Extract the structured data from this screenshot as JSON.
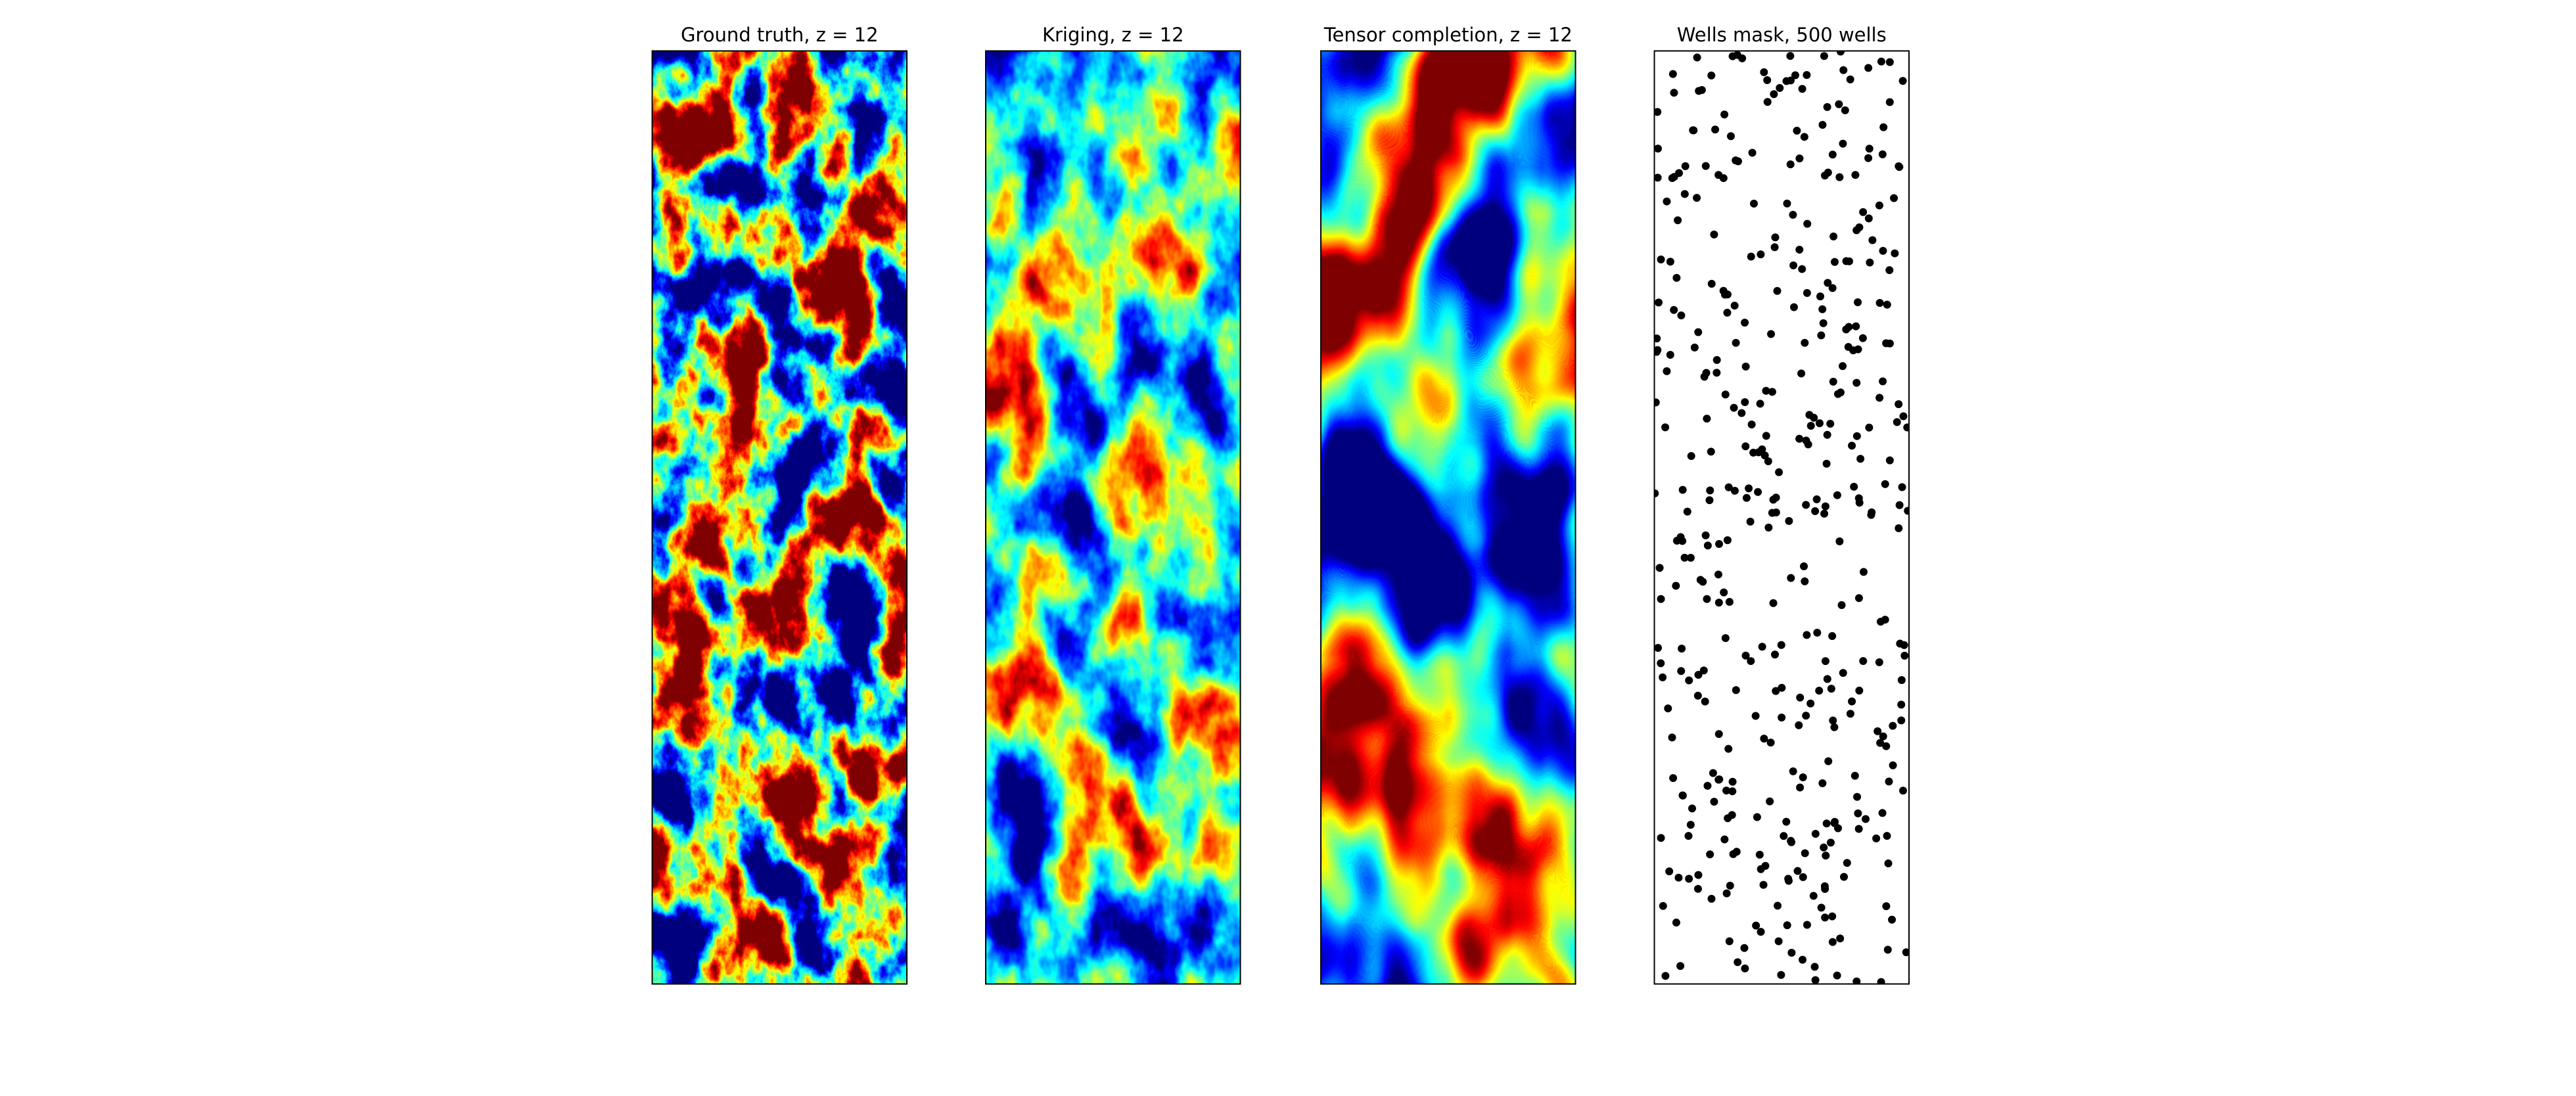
{
  "chart_data": [
    {
      "type": "heatmap",
      "title": "Ground truth, z = 12"
    },
    {
      "type": "heatmap",
      "title": "Kriging, z = 12"
    },
    {
      "type": "heatmap",
      "title": "Tensor completion, z = 12"
    },
    {
      "type": "mask",
      "title": "Wells mask, 500 wells"
    }
  ]
}
